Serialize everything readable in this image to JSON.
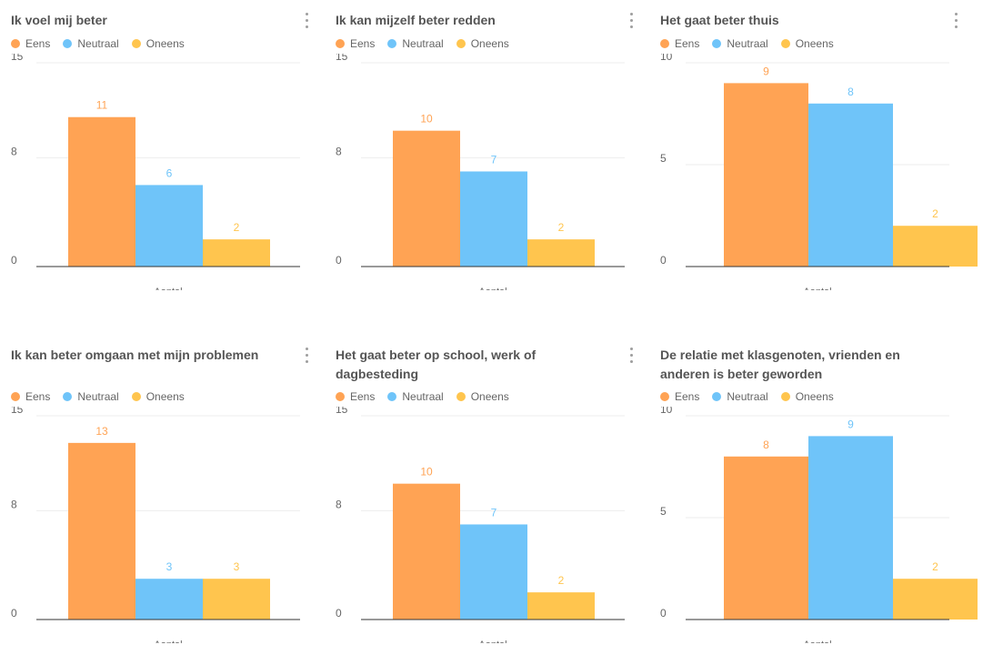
{
  "legend_labels": [
    "Eens",
    "Neutraal",
    "Oneens"
  ],
  "series_colors": [
    "#ffa354",
    "#6fc4f9",
    "#ffc54e"
  ],
  "chart_data": [
    {
      "type": "bar",
      "title": "Ik voel mij beter",
      "categories": [
        "Aantal"
      ],
      "series": [
        {
          "name": "Eens",
          "values": [
            11
          ]
        },
        {
          "name": "Neutraal",
          "values": [
            6
          ]
        },
        {
          "name": "Oneens",
          "values": [
            2
          ]
        }
      ],
      "xlabel": "Aantal",
      "ylim": [
        0,
        15
      ],
      "yticks": [
        0,
        8,
        15
      ],
      "grid": true,
      "legend": "top-left"
    },
    {
      "type": "bar",
      "title": "Ik kan mijzelf beter redden",
      "categories": [
        "Aantal"
      ],
      "series": [
        {
          "name": "Eens",
          "values": [
            10
          ]
        },
        {
          "name": "Neutraal",
          "values": [
            7
          ]
        },
        {
          "name": "Oneens",
          "values": [
            2
          ]
        }
      ],
      "xlabel": "Aantal",
      "ylim": [
        0,
        15
      ],
      "yticks": [
        0,
        8,
        15
      ],
      "grid": true,
      "legend": "top-left"
    },
    {
      "type": "bar",
      "title": "Het gaat beter thuis",
      "categories": [
        "Aantal"
      ],
      "series": [
        {
          "name": "Eens",
          "values": [
            9
          ]
        },
        {
          "name": "Neutraal",
          "values": [
            8
          ]
        },
        {
          "name": "Oneens",
          "values": [
            2
          ]
        }
      ],
      "xlabel": "Aantal",
      "ylim": [
        0,
        10
      ],
      "yticks": [
        0,
        5,
        10
      ],
      "grid": true,
      "legend": "top-left"
    },
    {
      "type": "bar",
      "title": "Ik kan beter omgaan met mijn problemen",
      "categories": [
        "Aantal"
      ],
      "series": [
        {
          "name": "Eens",
          "values": [
            13
          ]
        },
        {
          "name": "Neutraal",
          "values": [
            3
          ]
        },
        {
          "name": "Oneens",
          "values": [
            3
          ]
        }
      ],
      "xlabel": "Aantal",
      "ylim": [
        0,
        15
      ],
      "yticks": [
        0,
        8,
        15
      ],
      "grid": true,
      "legend": "top-left"
    },
    {
      "type": "bar",
      "title": "Het gaat beter op school, werk of dagbesteding",
      "categories": [
        "Aantal"
      ],
      "series": [
        {
          "name": "Eens",
          "values": [
            10
          ]
        },
        {
          "name": "Neutraal",
          "values": [
            7
          ]
        },
        {
          "name": "Oneens",
          "values": [
            2
          ]
        }
      ],
      "xlabel": "Aantal",
      "ylim": [
        0,
        15
      ],
      "yticks": [
        0,
        8,
        15
      ],
      "grid": true,
      "legend": "top-left"
    },
    {
      "type": "bar",
      "title": "De relatie met klasgenoten, vrienden en anderen is beter geworden",
      "categories": [
        "Aantal"
      ],
      "series": [
        {
          "name": "Eens",
          "values": [
            8
          ]
        },
        {
          "name": "Neutraal",
          "values": [
            9
          ]
        },
        {
          "name": "Oneens",
          "values": [
            2
          ]
        }
      ],
      "xlabel": "Aantal",
      "ylim": [
        0,
        10
      ],
      "yticks": [
        0,
        5,
        10
      ],
      "grid": true,
      "legend": "top-left"
    }
  ]
}
